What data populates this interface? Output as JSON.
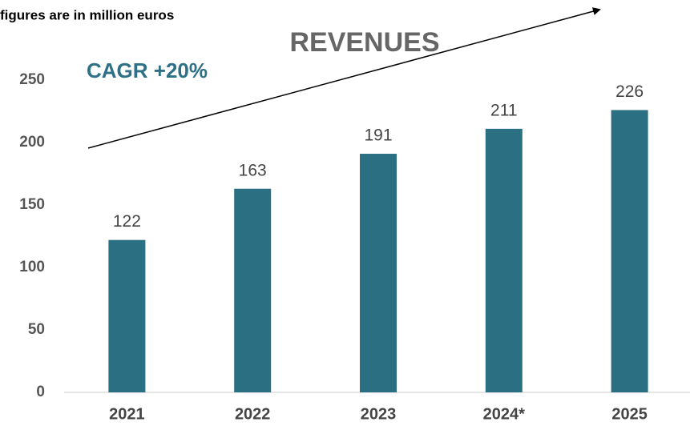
{
  "chart_data": {
    "type": "bar",
    "title": "REVENUES",
    "subtitle": "figures are in million euros",
    "annotation": "CAGR +20%",
    "categories": [
      "2021",
      "2022",
      "2023",
      "2024*",
      "2025"
    ],
    "values": [
      122,
      163,
      191,
      211,
      226
    ],
    "color": "#2b6f82",
    "ylim": [
      0,
      250
    ],
    "yticks": [
      0,
      50,
      100,
      150,
      200,
      250
    ],
    "grid": false
  }
}
